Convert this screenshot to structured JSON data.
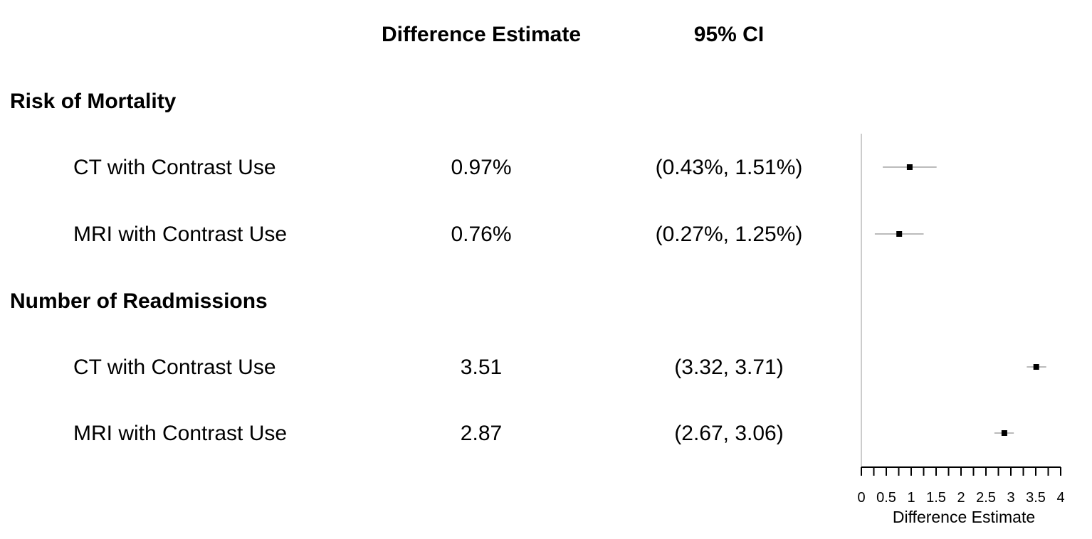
{
  "headers": {
    "estimate": "Difference Estimate",
    "ci": "95% CI"
  },
  "groups": [
    {
      "title": "Risk of Mortality",
      "rows": [
        {
          "label": "CT with Contrast Use",
          "estimate": "0.97%",
          "ci": "(0.43%, 1.51%)"
        },
        {
          "label": "MRI with Contrast Use",
          "estimate": "0.76%",
          "ci": "(0.27%, 1.25%)"
        }
      ]
    },
    {
      "title": "Number of Readmissions",
      "rows": [
        {
          "label": "CT with Contrast Use",
          "estimate": "3.51",
          "ci": "(3.32, 3.71)"
        },
        {
          "label": "MRI with Contrast Use",
          "estimate": "2.87",
          "ci": "(2.67, 3.06)"
        }
      ]
    }
  ],
  "chart_data": {
    "type": "scatter",
    "subtype": "forest-plot",
    "xlabel": "Difference Estimate",
    "xlim": [
      0,
      4
    ],
    "xticks": [
      "0",
      "0.5",
      "1",
      "1.5",
      "2",
      "2.5",
      "3",
      "3.5",
      "4"
    ],
    "minor_tick_step": 0.25,
    "points": [
      {
        "group": "Risk of Mortality",
        "label": "CT with Contrast Use",
        "estimate": 0.97,
        "lower": 0.43,
        "upper": 1.51
      },
      {
        "group": "Risk of Mortality",
        "label": "MRI with Contrast Use",
        "estimate": 0.76,
        "lower": 0.27,
        "upper": 1.25
      },
      {
        "group": "Number of Readmissions",
        "label": "CT with Contrast Use",
        "estimate": 3.51,
        "lower": 3.32,
        "upper": 3.71
      },
      {
        "group": "Number of Readmissions",
        "label": "MRI with Contrast Use",
        "estimate": 2.87,
        "lower": 2.67,
        "upper": 3.06
      }
    ],
    "colors": {
      "point": "#000000",
      "ci_line": "#bbbbbb",
      "reference_line": "#cccccc",
      "axis": "#000000"
    },
    "grid": false,
    "legend": "none"
  }
}
